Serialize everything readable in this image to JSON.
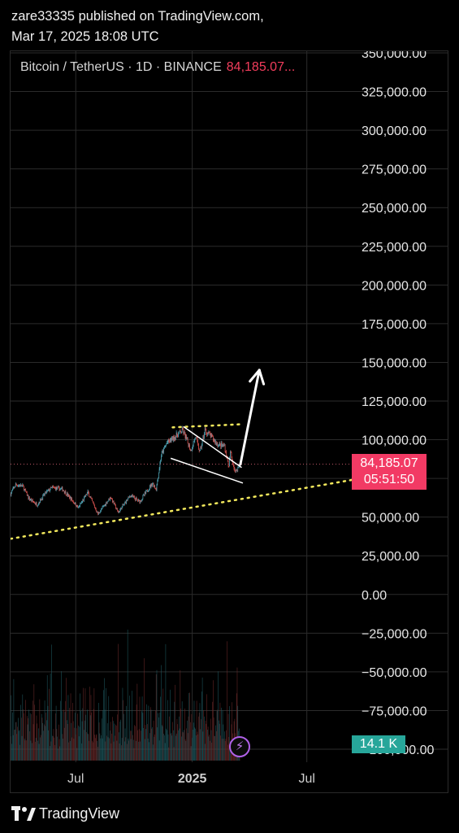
{
  "publisher": {
    "line1": "zare33335 published on TradingView.com,",
    "line2": "Mar 17, 2025 18:08 UTC"
  },
  "symbol": {
    "title": "Bitcoin / TetherUS · 1D · BINANCE",
    "price": "84,185.07..."
  },
  "price_badge": {
    "price": "84,185.07",
    "countdown": "05:51:50"
  },
  "volume_badge": "14.1 K",
  "branding": {
    "logo_icon": "tradingview-logo-icon",
    "name": "TradingView"
  },
  "colors": {
    "background": "#000000",
    "price_badge": "#f23a64",
    "volume_badge": "#27a69a",
    "up": "#4fa6b8",
    "down": "#d9534f",
    "dotted_trendline": "#f2e85c",
    "annotation": "#ffffff"
  },
  "chart_data": {
    "type": "candlestick",
    "y_axis": {
      "range": [
        -100000,
        350000
      ],
      "ticks": [
        -100000,
        -75000,
        -50000,
        -25000,
        0,
        25000,
        50000,
        75000,
        100000,
        125000,
        150000,
        175000,
        200000,
        225000,
        250000,
        275000,
        300000,
        325000,
        350000
      ],
      "tick_labels": [
        "−100,000.00",
        "−75,000.00",
        "−50,000.00",
        "−25,000.00",
        "0.00",
        "25,000.00",
        "50,000.00",
        "75,000.00",
        "100,000.00",
        "125,000.00",
        "150,000.00",
        "175,000.00",
        "200,000.00",
        "225,000.00",
        "250,000.00",
        "275,000.00",
        "300,000.00",
        "325,000.00",
        "350,000.00"
      ]
    },
    "x_axis": {
      "range": [
        "2024-03-20",
        "2025-09-10"
      ],
      "ticks": [
        {
          "date": "2024-07-01",
          "label": "Jul"
        },
        {
          "date": "2025-01-01",
          "label": "2025"
        },
        {
          "date": "2025-07-01",
          "label": "Jul"
        }
      ]
    },
    "grid": true,
    "current_price": 84185.07,
    "price_path": [
      [
        "2024-03-20",
        65000
      ],
      [
        "2024-03-28",
        71000
      ],
      [
        "2024-04-08",
        70000
      ],
      [
        "2024-04-18",
        62000
      ],
      [
        "2024-05-01",
        58000
      ],
      [
        "2024-05-15",
        66000
      ],
      [
        "2024-05-25",
        69000
      ],
      [
        "2024-06-10",
        68000
      ],
      [
        "2024-06-25",
        61000
      ],
      [
        "2024-07-05",
        56000
      ],
      [
        "2024-07-20",
        66000
      ],
      [
        "2024-08-05",
        52000
      ],
      [
        "2024-08-25",
        63000
      ],
      [
        "2024-09-06",
        53000
      ],
      [
        "2024-09-25",
        64000
      ],
      [
        "2024-10-10",
        60000
      ],
      [
        "2024-10-30",
        72000
      ],
      [
        "2024-11-05",
        68000
      ],
      [
        "2024-11-13",
        90000
      ],
      [
        "2024-11-22",
        98000
      ],
      [
        "2024-12-05",
        102000
      ],
      [
        "2024-12-17",
        106000
      ],
      [
        "2024-12-30",
        93000
      ],
      [
        "2025-01-06",
        102000
      ],
      [
        "2025-01-13",
        92000
      ],
      [
        "2025-01-21",
        106000
      ],
      [
        "2025-01-31",
        102000
      ],
      [
        "2025-02-10",
        97000
      ],
      [
        "2025-02-21",
        96000
      ],
      [
        "2025-02-28",
        82000
      ],
      [
        "2025-03-02",
        92000
      ],
      [
        "2025-03-10",
        79000
      ],
      [
        "2025-03-17",
        84185
      ]
    ],
    "volume_heights": [
      0.42,
      0.71,
      0.28,
      0.55,
      0.33,
      0.8,
      0.47,
      0.3,
      0.62,
      0.38,
      0.26,
      0.5,
      0.72,
      0.35,
      0.44,
      0.24,
      0.58,
      0.4,
      0.3,
      0.66,
      0.85,
      0.52,
      0.37,
      0.45,
      0.6,
      0.33,
      0.48,
      0.7,
      0.9,
      0.55
    ],
    "annotations": {
      "support_trendline": {
        "style": "dotted",
        "from": [
          "2024-03-20",
          36000
        ],
        "to": [
          "2025-09-10",
          74000
        ]
      },
      "resistance_line": {
        "style": "dotted",
        "from": [
          "2024-12-01",
          108000
        ],
        "to": [
          "2025-03-20",
          110000
        ]
      },
      "wedge_upper": {
        "from": [
          "2024-12-18",
          108500
        ],
        "to": [
          "2025-03-20",
          82000
        ]
      },
      "wedge_lower": {
        "from": [
          "2024-11-28",
          88000
        ],
        "to": [
          "2025-03-22",
          72000
        ]
      },
      "projection_arrow": {
        "from": [
          "2025-03-18",
          84000
        ],
        "to": [
          "2025-04-17",
          145000
        ]
      }
    }
  }
}
